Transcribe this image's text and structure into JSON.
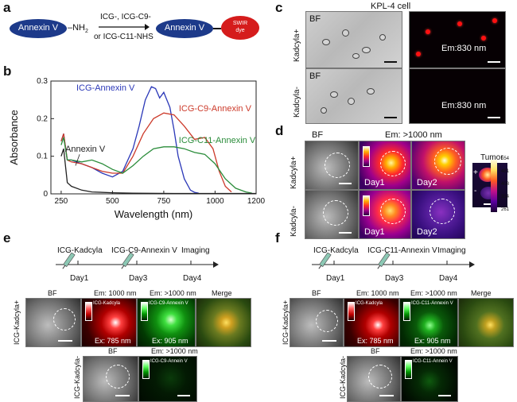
{
  "panel_labels": {
    "a": "a",
    "b": "b",
    "c": "c",
    "d": "d",
    "e": "e",
    "f": "f"
  },
  "panel_a": {
    "reactant": "Annexin V",
    "nh2": "–NH",
    "nh2_sub": "2",
    "reagent_line1": "ICG-, ICG-C9-",
    "reagent_line2": "or ICG-C11-NHS",
    "product": "Annexin V",
    "swir_line1": "SWIR",
    "swir_line2": "dye",
    "colors": {
      "ellipse": "#1d3a8a",
      "swir": "#d51c1c"
    }
  },
  "panel_b": {
    "chart_data": {
      "type": "line",
      "xlabel": "Wavelength (nm)",
      "ylabel": "Absorbance",
      "xlim": [
        200,
        1200
      ],
      "ylim": [
        0,
        0.3
      ],
      "xticks": [
        "250",
        "500",
        "750",
        "1000",
        "1200"
      ],
      "yticks": [
        "0",
        "0.1",
        "0.2",
        "0.3"
      ],
      "series": [
        {
          "name": "ICG-Annexin V",
          "color": "#2b38b8",
          "x": [
            250,
            262,
            280,
            300,
            350,
            400,
            450,
            500,
            550,
            600,
            630,
            660,
            690,
            710,
            730,
            750,
            780,
            800,
            820,
            850,
            880,
            900,
            920
          ],
          "y": [
            0.14,
            0.16,
            0.09,
            0.09,
            0.08,
            0.07,
            0.055,
            0.045,
            0.06,
            0.12,
            0.18,
            0.25,
            0.285,
            0.28,
            0.255,
            0.27,
            0.23,
            0.17,
            0.1,
            0.04,
            0.01,
            0.004,
            0.002
          ]
        },
        {
          "name": "ICG-C9-Annexin V",
          "color": "#cc3a2a",
          "x": [
            250,
            262,
            280,
            300,
            350,
            400,
            450,
            500,
            550,
            600,
            650,
            700,
            750,
            800,
            850,
            900,
            950,
            990,
            1020,
            1050,
            1080
          ],
          "y": [
            0.14,
            0.16,
            0.09,
            0.085,
            0.08,
            0.07,
            0.06,
            0.055,
            0.055,
            0.1,
            0.16,
            0.2,
            0.215,
            0.21,
            0.18,
            0.145,
            0.15,
            0.12,
            0.06,
            0.02,
            0.005
          ]
        },
        {
          "name": "ICG-C11-Annexin V",
          "color": "#2a8c3a",
          "x": [
            250,
            262,
            280,
            300,
            350,
            400,
            450,
            500,
            550,
            600,
            650,
            700,
            750,
            800,
            850,
            900,
            950,
            1000,
            1050,
            1100,
            1150,
            1180
          ],
          "y": [
            0.13,
            0.15,
            0.09,
            0.09,
            0.085,
            0.09,
            0.08,
            0.065,
            0.055,
            0.075,
            0.1,
            0.12,
            0.125,
            0.125,
            0.12,
            0.11,
            0.105,
            0.08,
            0.04,
            0.015,
            0.005,
            0.002
          ]
        },
        {
          "name": "Annexin V",
          "color": "#222222",
          "x": [
            250,
            262,
            280,
            300,
            350,
            400,
            500,
            600,
            800,
            1000,
            1200
          ],
          "y": [
            0.1,
            0.12,
            0.03,
            0.02,
            0.01,
            0.005,
            0.003,
            0.002,
            0.001,
            0.001,
            0.001
          ]
        }
      ],
      "grid": false
    }
  },
  "panel_c": {
    "title": "KPL-4 cell",
    "row1": "Kadcyla+",
    "row2": "Kadcyla-",
    "bf": "BF",
    "em1": "Em:830 nm",
    "em2": "Em:830 nm"
  },
  "panel_d": {
    "em_header": "Em: >1000 nm",
    "bf": "BF",
    "row1": "Kadcyla+",
    "row2": "Kadcyla-",
    "day1": "Day1",
    "day2": "Day1",
    "day3": "Day2",
    "day4": "Day1",
    "day5": "Day2",
    "tumor_title": "Tumor",
    "plus": "+",
    "minus": "-",
    "scale": [
      "554",
      "481",
      "408",
      "334",
      "261"
    ]
  },
  "panel_e": {
    "step1": "ICG-Kadcyla",
    "step2": "ICG-C9-Annexin V",
    "step3": "Imaging",
    "day1": "Day1",
    "day3": "Day3",
    "day4": "Day4",
    "row1": "ICG-Kadcyla+",
    "row2": "ICG-Kadcyla-",
    "bf1": "BF",
    "em1000": "Em: 1000 nm",
    "em_gt1000": "Em: >1000 nm",
    "merge": "Merge",
    "tag_kadcyla": "ICG-Kadcyla",
    "tag_annexin": "ICG-C9-Annexin V",
    "ex785": "Ex: 785 nm",
    "ex905": "Ex: 905 nm",
    "bf2": "BF",
    "em_gt1000_2": "Em: >1000 nm",
    "tag_annexin2": "ICG-C9-Annein V"
  },
  "panel_f": {
    "step1": "ICG-Kadcyla",
    "step2": "ICG-C11-Annexin V",
    "step3": "Imaging",
    "day1": "Day1",
    "day3": "Day3",
    "day4": "Day4",
    "row1": "ICG-Kadcyla+",
    "row2": "ICG-Kadcyla-",
    "bf1": "BF",
    "em1000": "Em: 1000 nm",
    "em_gt1000": "Em: >1000 nm",
    "merge": "Merge",
    "tag_kadcyla": "ICG-Kadcyla",
    "tag_annexin": "ICG-C11-Annexin V",
    "ex785": "Ex: 785 nm",
    "ex905": "Ex: 905 nm",
    "bf2": "BF",
    "em_gt1000_2": "Em: >1000 nm",
    "tag_annexin2": "ICG-C11-Annein V"
  }
}
